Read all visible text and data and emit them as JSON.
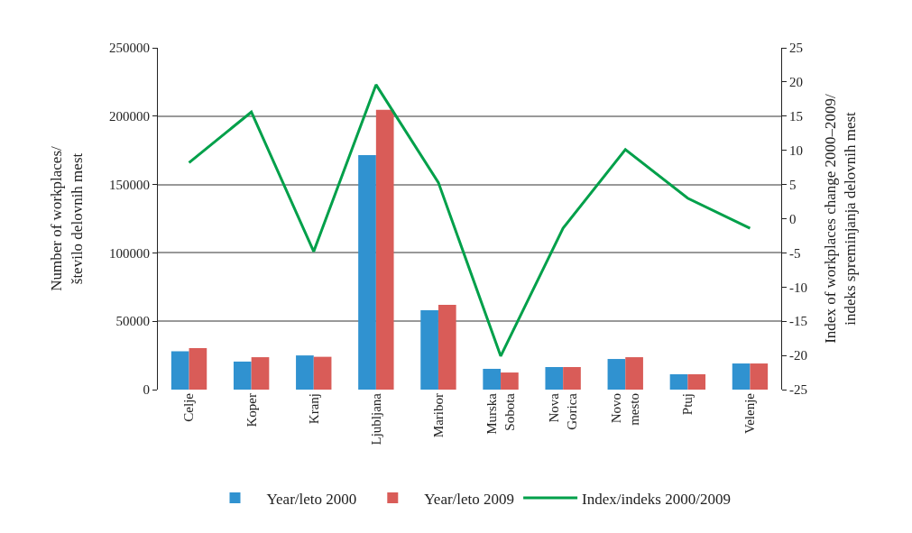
{
  "chart_data": {
    "type": "bar",
    "categories": [
      "Celje",
      "Koper",
      "Kranj",
      "Ljubljana",
      "Maribor",
      "Murska Sobota",
      "Nova Gorica",
      "Novo mesto",
      "Ptuj",
      "Velenje"
    ],
    "series": [
      {
        "name": "Year/leto 2000",
        "color": "#3092d0",
        "values": [
          28000,
          20500,
          25000,
          171500,
          58000,
          15200,
          16500,
          22400,
          11200,
          19100
        ]
      },
      {
        "name": "Year/leto 2009",
        "color": "#d95c58",
        "values": [
          30300,
          23700,
          24000,
          204700,
          62000,
          12500,
          16500,
          23700,
          11200,
          19100
        ]
      },
      {
        "name": "Index/indeks 2000/2009",
        "type": "line",
        "axis": "y2",
        "color": "#00a04a",
        "values": [
          8.2,
          15.6,
          -4.8,
          19.6,
          5.3,
          -20.1,
          -1.4,
          10.1,
          3.0,
          -1.4
        ]
      }
    ],
    "ylabel": "Number of workplaces/ število delovnih mest",
    "y2label": "Index of workplaces change 2000–2009/ indeks spreminjanja delovnih mest",
    "ylim": [
      0,
      250000
    ],
    "yticks": [
      0,
      50000,
      100000,
      150000,
      200000,
      250000
    ],
    "y2lim": [
      -25,
      25
    ],
    "y2ticks": [
      -25,
      -20,
      -15,
      -10,
      -5,
      0,
      5,
      10,
      15,
      20,
      25
    ],
    "grid": "y",
    "legend": "bottom",
    "marker": "none",
    "line_style": "solid"
  }
}
